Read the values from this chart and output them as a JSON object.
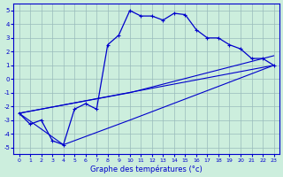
{
  "xlabel": "Graphe des températures (°c)",
  "background_color": "#cceedd",
  "grid_color": "#99bbbb",
  "line_color": "#0000cc",
  "xlim": [
    -0.5,
    23.5
  ],
  "ylim": [
    -5.5,
    5.5
  ],
  "xticks": [
    0,
    1,
    2,
    3,
    4,
    5,
    6,
    7,
    8,
    9,
    10,
    11,
    12,
    13,
    14,
    15,
    16,
    17,
    18,
    19,
    20,
    21,
    22,
    23
  ],
  "yticks": [
    -5,
    -4,
    -3,
    -2,
    -1,
    0,
    1,
    2,
    3,
    4,
    5
  ],
  "main_x": [
    0,
    1,
    2,
    3,
    4,
    5,
    6,
    7,
    8,
    9,
    10,
    11,
    12,
    13,
    14,
    15,
    16,
    17,
    18,
    19,
    20,
    21,
    22,
    23
  ],
  "main_y": [
    -2.5,
    -3.3,
    -3.0,
    -4.5,
    -4.8,
    -2.2,
    -1.8,
    -2.2,
    2.5,
    3.2,
    5.0,
    4.6,
    4.6,
    4.3,
    4.8,
    4.7,
    3.6,
    3.0,
    3.0,
    2.5,
    2.2,
    1.5,
    1.5,
    1.0
  ],
  "trend1_x": [
    0,
    23
  ],
  "trend1_y": [
    -2.5,
    1.0
  ],
  "trend2_x": [
    0,
    4,
    5,
    10,
    23
  ],
  "trend2_y": [
    -2.5,
    -4.8,
    -4.5,
    -3.0,
    1.0
  ],
  "trend3_x": [
    0,
    10,
    23
  ],
  "trend3_y": [
    -2.5,
    -1.0,
    1.7
  ]
}
